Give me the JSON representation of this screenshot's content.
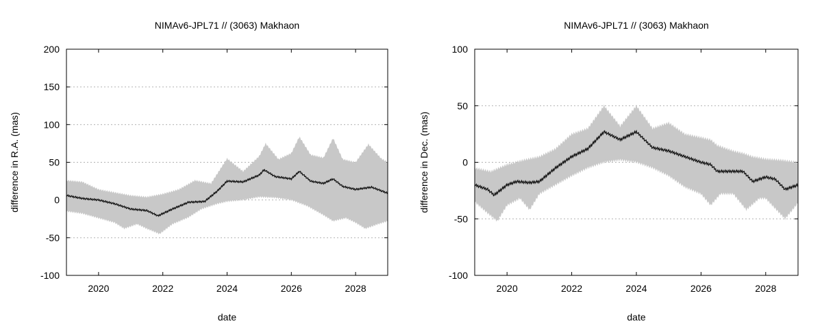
{
  "chart_data": [
    {
      "type": "area",
      "title": "NIMAv6-JPL71 // (3063) Makhaon",
      "xlabel": "date",
      "ylabel": "difference in R.A. (mas)",
      "xlim": [
        2019.0,
        2029.0
      ],
      "ylim": [
        -100,
        200
      ],
      "xticks": [
        "2020",
        "2022",
        "2024",
        "2026",
        "2028"
      ],
      "yticks": [
        "200",
        "150",
        "100",
        "50",
        "0",
        "-50",
        "-100"
      ],
      "grid": "horizontal dotted",
      "band_color": "#c8c8c8",
      "line_color": "#1a1a1a",
      "series": [
        {
          "role": "difference",
          "x": [
            2019.0,
            2019.5,
            2020.0,
            2020.5,
            2021.0,
            2021.5,
            2021.85,
            2022.3,
            2022.8,
            2023.3,
            2023.7,
            2024.0,
            2024.5,
            2025.0,
            2025.15,
            2025.5,
            2026.0,
            2026.25,
            2026.6,
            2027.0,
            2027.3,
            2027.6,
            2028.0,
            2028.5,
            2029.0
          ],
          "y": [
            6,
            2,
            0,
            -5,
            -12,
            -14,
            -21,
            -12,
            -3,
            -2,
            12,
            25,
            24,
            33,
            40,
            31,
            28,
            38,
            25,
            22,
            28,
            18,
            14,
            17,
            9
          ]
        },
        {
          "role": "upper",
          "x": [
            2019.0,
            2019.5,
            2020.0,
            2020.5,
            2021.0,
            2021.5,
            2022.0,
            2022.5,
            2023.0,
            2023.5,
            2024.0,
            2024.5,
            2025.0,
            2025.2,
            2025.6,
            2026.0,
            2026.25,
            2026.6,
            2027.0,
            2027.3,
            2027.6,
            2028.0,
            2028.4,
            2028.8,
            2029.0
          ],
          "y": [
            26,
            24,
            14,
            10,
            6,
            4,
            8,
            14,
            26,
            22,
            55,
            38,
            58,
            75,
            54,
            62,
            84,
            60,
            56,
            82,
            54,
            50,
            74,
            55,
            50
          ]
        },
        {
          "role": "lower",
          "x": [
            2019.0,
            2019.5,
            2020.0,
            2020.5,
            2020.8,
            2021.2,
            2021.5,
            2021.9,
            2022.3,
            2022.8,
            2023.2,
            2023.7,
            2024.0,
            2024.5,
            2025.0,
            2025.5,
            2026.0,
            2026.5,
            2027.0,
            2027.3,
            2027.7,
            2028.0,
            2028.3,
            2028.7,
            2029.0
          ],
          "y": [
            -15,
            -18,
            -24,
            -30,
            -38,
            -32,
            -38,
            -45,
            -32,
            -23,
            -12,
            -5,
            -2,
            0,
            4,
            3,
            0,
            -8,
            -20,
            -28,
            -24,
            -30,
            -38,
            -32,
            -28
          ]
        }
      ]
    },
    {
      "type": "area",
      "title": "NIMAv6-JPL71 // (3063) Makhaon",
      "xlabel": "date",
      "ylabel": "difference in Dec. (mas)",
      "xlim": [
        2019.0,
        2029.0
      ],
      "ylim": [
        -100,
        100
      ],
      "xticks": [
        "2020",
        "2022",
        "2024",
        "2026",
        "2028"
      ],
      "yticks": [
        "100",
        "50",
        "0",
        "-50",
        "-100"
      ],
      "grid": "horizontal dotted",
      "band_color": "#c8c8c8",
      "line_color": "#1a1a1a",
      "series": [
        {
          "role": "difference",
          "x": [
            2019.0,
            2019.4,
            2019.6,
            2020.0,
            2020.3,
            2020.7,
            2021.0,
            2021.5,
            2022.0,
            2022.5,
            2023.0,
            2023.5,
            2024.0,
            2024.5,
            2025.0,
            2025.5,
            2026.0,
            2026.3,
            2026.5,
            2027.0,
            2027.3,
            2027.6,
            2028.0,
            2028.3,
            2028.6,
            2029.0
          ],
          "y": [
            -20,
            -24,
            -29,
            -20,
            -17,
            -18,
            -17,
            -5,
            5,
            12,
            27,
            20,
            27,
            13,
            10,
            5,
            0,
            -2,
            -8,
            -8,
            -8,
            -17,
            -13,
            -15,
            -24,
            -20
          ]
        },
        {
          "role": "upper",
          "x": [
            2019.0,
            2019.5,
            2020.0,
            2020.5,
            2021.0,
            2021.5,
            2022.0,
            2022.5,
            2023.0,
            2023.5,
            2024.0,
            2024.5,
            2025.0,
            2025.5,
            2026.0,
            2026.3,
            2026.5,
            2027.0,
            2027.3,
            2027.6,
            2028.0,
            2028.5,
            2029.0
          ],
          "y": [
            -5,
            -8,
            -2,
            2,
            5,
            12,
            25,
            30,
            50,
            32,
            50,
            30,
            35,
            25,
            22,
            20,
            15,
            10,
            8,
            5,
            3,
            2,
            0
          ]
        },
        {
          "role": "lower",
          "x": [
            2019.0,
            2019.4,
            2019.7,
            2020.0,
            2020.4,
            2020.7,
            2021.0,
            2021.5,
            2022.0,
            2022.5,
            2023.0,
            2023.5,
            2024.0,
            2024.5,
            2025.0,
            2025.5,
            2026.0,
            2026.3,
            2026.6,
            2027.0,
            2027.4,
            2027.8,
            2028.0,
            2028.6,
            2029.0
          ],
          "y": [
            -35,
            -45,
            -52,
            -38,
            -32,
            -42,
            -28,
            -20,
            -12,
            -5,
            0,
            2,
            0,
            -5,
            -12,
            -22,
            -28,
            -38,
            -28,
            -28,
            -42,
            -32,
            -32,
            -50,
            -36
          ]
        }
      ]
    }
  ]
}
